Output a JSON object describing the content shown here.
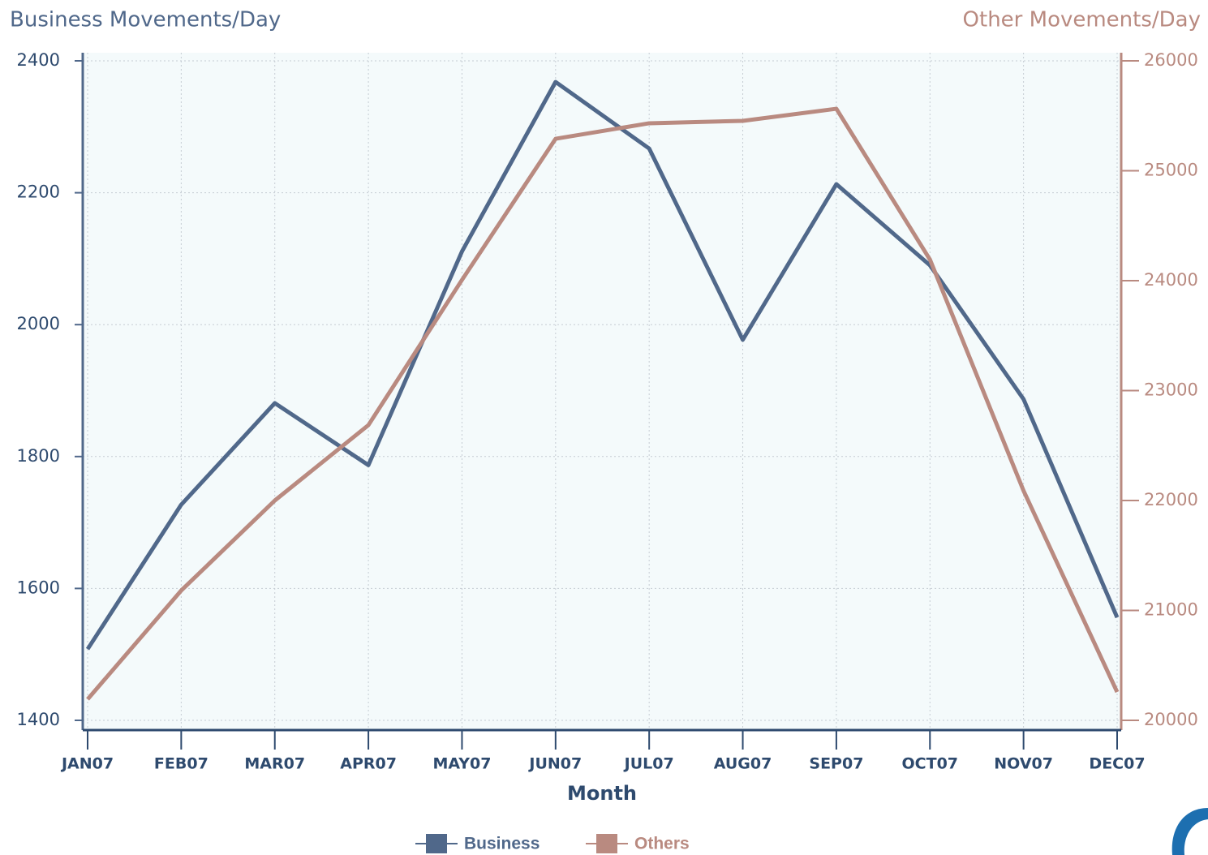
{
  "chart_data": {
    "type": "line",
    "title": "Business Movements/Day",
    "y2_title": "Other Movements/Day",
    "x_label": "Month",
    "categories": [
      "JAN07",
      "FEB07",
      "MAR07",
      "APR07",
      "MAY07",
      "JUN07",
      "JUL07",
      "AUG07",
      "SEP07",
      "OCT07",
      "NOV07",
      "DEC07"
    ],
    "series": [
      {
        "name": "Business",
        "color": "#50688a",
        "values": [
          1508,
          1727,
          1881,
          1787,
          2111,
          2368,
          2267,
          1977,
          2213,
          2090,
          1887,
          1556
        ]
      },
      {
        "name": "Others",
        "color": "#b98a80",
        "axis": "y2",
        "values": [
          20192,
          21181,
          22000,
          22686,
          24007,
          25291,
          25432,
          25454,
          25564,
          24192,
          22089,
          20258
        ]
      }
    ],
    "ylim": [
      1400,
      2400
    ],
    "yticks": [
      1400,
      1600,
      1800,
      2000,
      2200,
      2400
    ],
    "y2lim": [
      20000,
      26000
    ],
    "y2ticks": [
      20000,
      21000,
      22000,
      23000,
      24000,
      25000,
      26000
    ],
    "grid": true,
    "legend": "bottom"
  }
}
